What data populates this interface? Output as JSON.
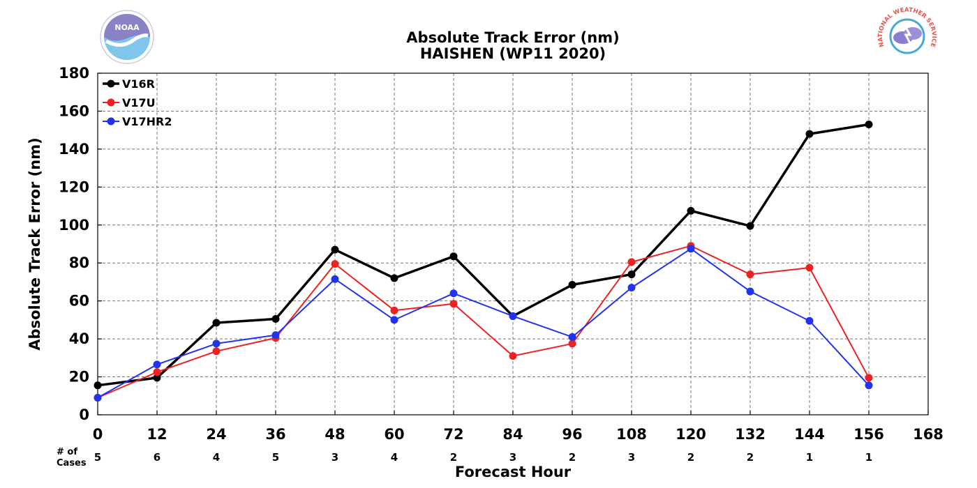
{
  "chart_data": {
    "type": "line",
    "title": "Absolute Track Error (nm)",
    "subtitle": "HAISHEN (WP11 2020)",
    "xlabel": "Forecast Hour",
    "ylabel": "Absolute Track Error (nm)",
    "xlim": [
      0,
      168
    ],
    "ylim": [
      0,
      180
    ],
    "x_ticks": [
      "0",
      "12",
      "24",
      "36",
      "48",
      "60",
      "72",
      "84",
      "96",
      "108",
      "120",
      "132",
      "144",
      "156",
      "168"
    ],
    "y_ticks": [
      "0",
      "20",
      "40",
      "60",
      "80",
      "100",
      "120",
      "140",
      "160",
      "180"
    ],
    "grid": true,
    "legend_position": "top-left",
    "series": [
      {
        "name": "V16R",
        "color": "#000000",
        "x": [
          0,
          12,
          24,
          36,
          48,
          60,
          72,
          84,
          96,
          108,
          120,
          132,
          144,
          156
        ],
        "values": [
          15.5,
          19.5,
          48.5,
          50.5,
          87,
          72,
          83.5,
          52,
          68.5,
          74,
          107.5,
          99.5,
          148,
          153
        ]
      },
      {
        "name": "V17U",
        "color": "#ee2222",
        "x": [
          0,
          12,
          24,
          36,
          48,
          60,
          72,
          84,
          96,
          108,
          120,
          132,
          144,
          156
        ],
        "values": [
          9,
          22.5,
          33.5,
          40.5,
          79.5,
          55,
          58.5,
          31,
          37.5,
          80.5,
          89,
          74,
          77.5,
          19.5
        ]
      },
      {
        "name": "V17HR2",
        "color": "#2233ee",
        "x": [
          0,
          12,
          24,
          36,
          48,
          60,
          72,
          84,
          96,
          108,
          120,
          132,
          144,
          156
        ],
        "values": [
          9,
          26.5,
          37.5,
          42,
          71.5,
          50,
          64,
          52,
          41,
          67,
          87.5,
          65,
          49.5,
          15.5
        ]
      }
    ],
    "cases_label_line1": "# of",
    "cases_label_line2": "Cases",
    "cases": [
      "5",
      "6",
      "4",
      "5",
      "3",
      "4",
      "2",
      "3",
      "2",
      "3",
      "2",
      "2",
      "1",
      "1"
    ]
  },
  "logos": {
    "left_text": "NOAA",
    "right_text": "NATIONAL WEATHER SERVICE"
  }
}
